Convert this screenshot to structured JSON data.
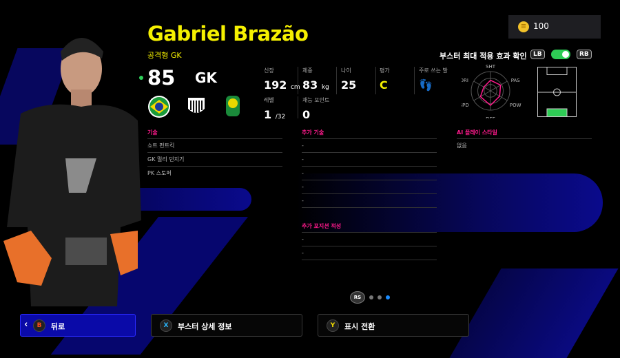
{
  "currency": {
    "icon": "coin-icon",
    "amount": "100"
  },
  "player": {
    "name": "Gabriel Brazão",
    "playstyle": "공격형 GK",
    "overall": "85",
    "position": "GK",
    "badges": [
      "brazil-flag-icon",
      "santos-crest-icon",
      "brasileirao-league-icon"
    ]
  },
  "stats": {
    "height": {
      "label": "신장",
      "value": "192",
      "unit": "cm"
    },
    "weight": {
      "label": "체중",
      "value": "83",
      "unit": "kg"
    },
    "age": {
      "label": "나이",
      "value": "25"
    },
    "rating": {
      "label": "평가",
      "value": "C"
    },
    "foot": {
      "label": "주로 쓰는 발",
      "icon": "feet-icon"
    },
    "level": {
      "label": "레벨",
      "value": "1",
      "max": "/32"
    },
    "skill_points": {
      "label": "재능 포인트",
      "value": "0"
    }
  },
  "booster": {
    "label": "부스터 최대 적용 효과 확인",
    "lb": "LB",
    "rb": "RB",
    "enabled": true
  },
  "radar": {
    "axes": [
      "SHT",
      "PAS",
      "POW",
      "DEF",
      "SPD",
      "DRI"
    ],
    "values": [
      0.55,
      0.6,
      0.55,
      0.75,
      0.6,
      0.4
    ],
    "color": "#ff1a8c"
  },
  "skills": {
    "title": "기술",
    "items": [
      "쇼트 펀트킥",
      "GK 멀리 던지기",
      "PK 스토퍼"
    ]
  },
  "extra_skills": {
    "title": "추가 기술",
    "items": [
      "-",
      "-",
      "-",
      "-",
      "-"
    ]
  },
  "extra_positions": {
    "title": "추가 포지션 적성",
    "items": [
      "-",
      "-"
    ]
  },
  "ai_style": {
    "title": "AI 플레이 스타일",
    "items": [
      "없음"
    ]
  },
  "pager": {
    "label": "RS",
    "pages": 3,
    "current": 3
  },
  "footer": {
    "back": {
      "key": "B",
      "label": "뒤로"
    },
    "booster_detail": {
      "key": "X",
      "label": "부스터 상세 정보"
    },
    "toggle_view": {
      "key": "Y",
      "label": "표시 전환"
    }
  },
  "colors": {
    "accent": "#f5f000",
    "section": "#ff1a8c",
    "selected": "#0a0aa8",
    "toggle": "#2ecc55"
  }
}
